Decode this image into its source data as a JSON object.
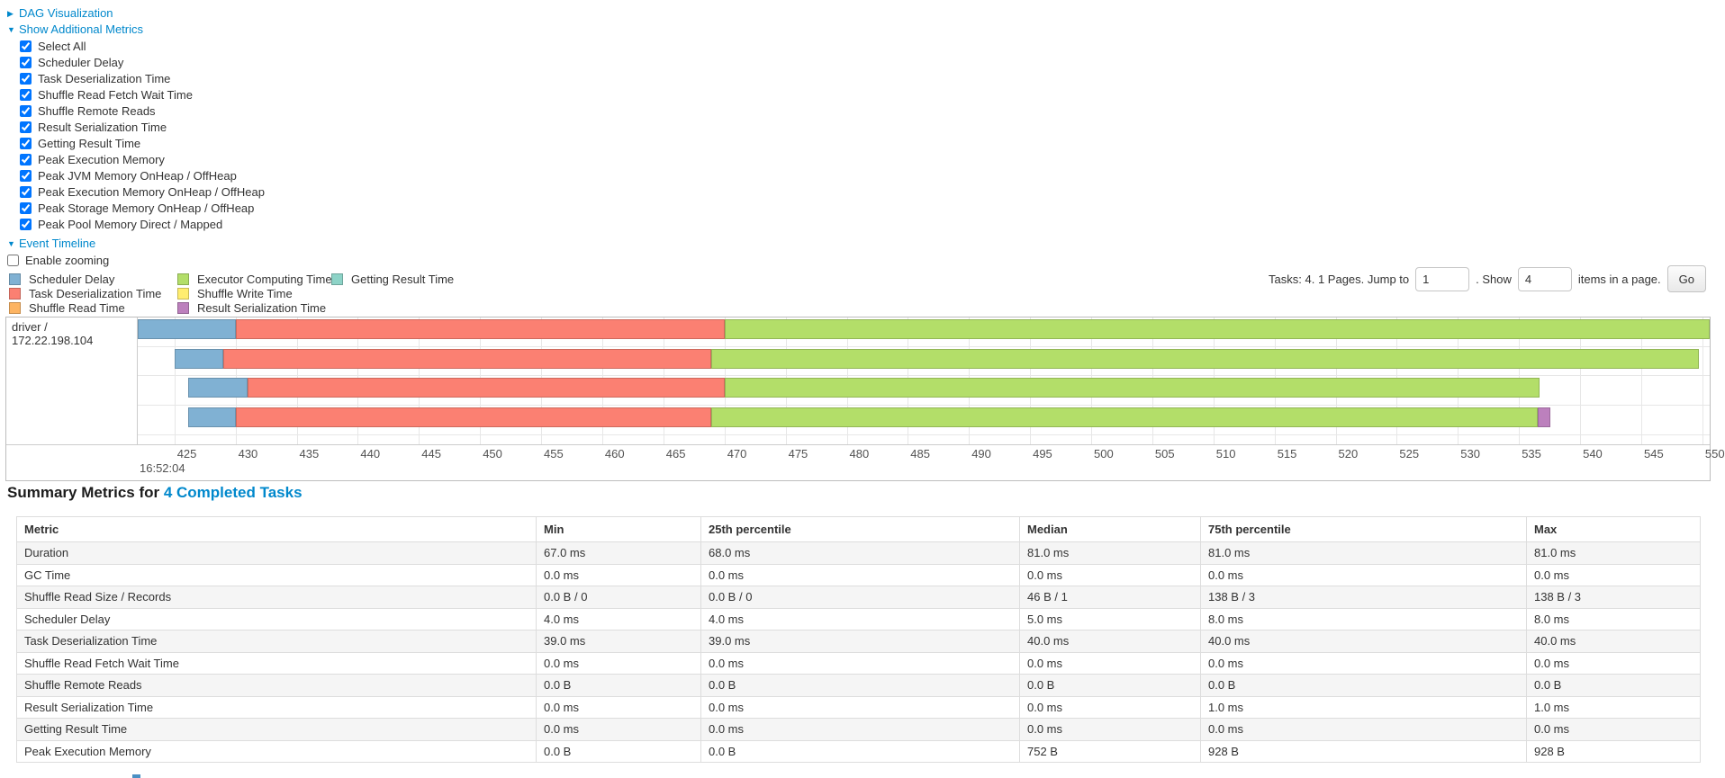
{
  "controls": {
    "dag": {
      "arrow": "▶",
      "label": "DAG Visualization"
    },
    "metrics": {
      "arrow": "▼",
      "label": "Show Additional Metrics"
    },
    "metric_checkboxes": [
      "Select All",
      "Scheduler Delay",
      "Task Deserialization Time",
      "Shuffle Read Fetch Wait Time",
      "Shuffle Remote Reads",
      "Result Serialization Time",
      "Getting Result Time",
      "Peak Execution Memory",
      "Peak JVM Memory OnHeap / OffHeap",
      "Peak Execution Memory OnHeap / OffHeap",
      "Peak Storage Memory OnHeap / OffHeap",
      "Peak Pool Memory Direct / Mapped"
    ],
    "event_timeline": {
      "arrow": "▼",
      "label": "Event Timeline"
    },
    "enable_zooming_label": "Enable zooming"
  },
  "pagination": {
    "tasks_summary": "Tasks: 4. 1 Pages. Jump to",
    "jump_value": "1",
    "show_label": ". Show",
    "page_size_value": "4",
    "items_label": "items in a page.",
    "go_label": "Go"
  },
  "chart_data": {
    "type": "bar",
    "orientation": "horizontal-timeline",
    "title": "Event Timeline",
    "group_label": "driver / 172.22.198.104",
    "x_axis": {
      "min": 422.0,
      "max": 550.6,
      "tick_start": 425,
      "tick_end": 550,
      "tick_step": 5,
      "major_label": "16:52:04",
      "unit": "ms"
    },
    "palette": {
      "scheduler_delay": "#80B1D3",
      "task_deserialization": "#FB8072",
      "shuffle_read": "#FDB462",
      "executor_computing": "#B3DE69",
      "shuffle_write": "#FFED6F",
      "result_serialization": "#BC80BD",
      "getting_result": "#8DD3C7"
    },
    "legend_columns": [
      [
        {
          "key": "scheduler_delay",
          "label": "Scheduler Delay"
        },
        {
          "key": "task_deserialization",
          "label": "Task Deserialization Time"
        },
        {
          "key": "shuffle_read",
          "label": "Shuffle Read Time"
        }
      ],
      [
        {
          "key": "executor_computing",
          "label": "Executor Computing Time"
        },
        {
          "key": "shuffle_write",
          "label": "Shuffle Write Time"
        },
        {
          "key": "result_serialization",
          "label": "Result Serialization Time"
        }
      ],
      [
        {
          "key": "getting_result",
          "label": "Getting Result Time"
        }
      ]
    ],
    "tasks": [
      {
        "segments": [
          {
            "key": "scheduler_delay",
            "start": 422.0,
            "end": 430.0
          },
          {
            "key": "task_deserialization",
            "start": 430.0,
            "end": 470.0
          },
          {
            "key": "executor_computing",
            "start": 470.0,
            "end": 550.6
          }
        ]
      },
      {
        "segments": [
          {
            "key": "scheduler_delay",
            "start": 425.0,
            "end": 429.0
          },
          {
            "key": "task_deserialization",
            "start": 429.0,
            "end": 468.9
          },
          {
            "key": "executor_computing",
            "start": 468.9,
            "end": 549.7
          }
        ]
      },
      {
        "segments": [
          {
            "key": "scheduler_delay",
            "start": 426.1,
            "end": 431.0
          },
          {
            "key": "task_deserialization",
            "start": 431.0,
            "end": 470.0
          },
          {
            "key": "executor_computing",
            "start": 470.0,
            "end": 536.7
          }
        ]
      },
      {
        "segments": [
          {
            "key": "scheduler_delay",
            "start": 426.1,
            "end": 430.0
          },
          {
            "key": "task_deserialization",
            "start": 430.0,
            "end": 468.9
          },
          {
            "key": "executor_computing",
            "start": 468.9,
            "end": 536.5
          },
          {
            "key": "result_serialization",
            "start": 536.5,
            "end": 537.6
          }
        ]
      }
    ]
  },
  "summary_metrics": {
    "prefix": "Summary Metrics for ",
    "link": "4 Completed Tasks",
    "columns": [
      "Metric",
      "Min",
      "25th percentile",
      "Median",
      "75th percentile",
      "Max"
    ],
    "rows": [
      [
        "Duration",
        "67.0 ms",
        "68.0 ms",
        "81.0 ms",
        "81.0 ms",
        "81.0 ms"
      ],
      [
        "GC Time",
        "0.0 ms",
        "0.0 ms",
        "0.0 ms",
        "0.0 ms",
        "0.0 ms"
      ],
      [
        "Shuffle Read Size / Records",
        "0.0 B / 0",
        "0.0 B / 0",
        "46 B / 1",
        "138 B / 3",
        "138 B / 3"
      ],
      [
        "Scheduler Delay",
        "4.0 ms",
        "4.0 ms",
        "5.0 ms",
        "8.0 ms",
        "8.0 ms"
      ],
      [
        "Task Deserialization Time",
        "39.0 ms",
        "39.0 ms",
        "40.0 ms",
        "40.0 ms",
        "40.0 ms"
      ],
      [
        "Shuffle Read Fetch Wait Time",
        "0.0 ms",
        "0.0 ms",
        "0.0 ms",
        "0.0 ms",
        "0.0 ms"
      ],
      [
        "Shuffle Remote Reads",
        "0.0 B",
        "0.0 B",
        "0.0 B",
        "0.0 B",
        "0.0 B"
      ],
      [
        "Result Serialization Time",
        "0.0 ms",
        "0.0 ms",
        "0.0 ms",
        "1.0 ms",
        "1.0 ms"
      ],
      [
        "Getting Result Time",
        "0.0 ms",
        "0.0 ms",
        "0.0 ms",
        "0.0 ms",
        "0.0 ms"
      ],
      [
        "Peak Execution Memory",
        "0.0 B",
        "0.0 B",
        "752 B",
        "928 B",
        "928 B"
      ]
    ]
  }
}
